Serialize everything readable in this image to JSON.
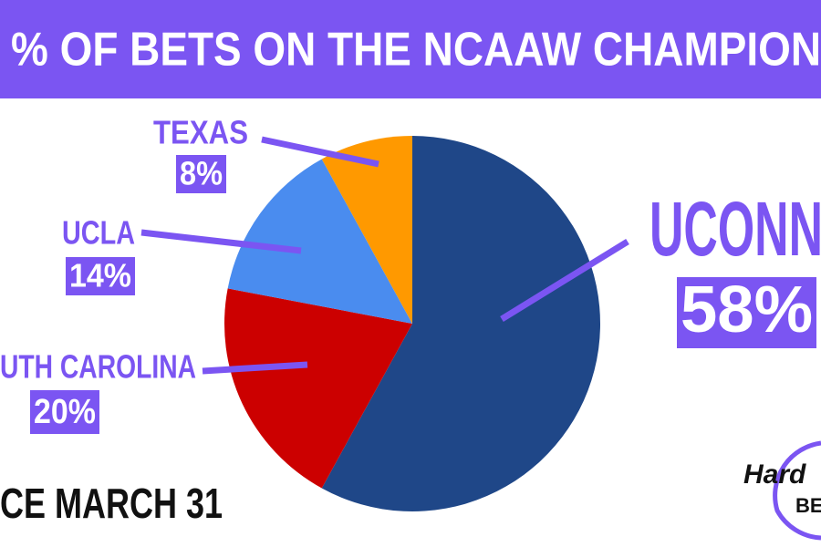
{
  "chart_data": {
    "type": "pie",
    "title": "% OF BETS ON THE NCAAW CHAMPION",
    "subtitle": "CE MARCH 31",
    "logo": [
      "Hard",
      "BE"
    ],
    "categories": [
      "UCONN",
      "UTH CAROLINA",
      "UCLA",
      "TEXAS"
    ],
    "values": [
      58,
      20,
      14,
      8
    ],
    "value_labels": [
      "58%",
      "20%",
      "14%",
      "8%"
    ],
    "colors": [
      "#1f4788",
      "#cc0000",
      "#4a8cef",
      "#ff9900"
    ],
    "accent": "#7b55f2"
  }
}
